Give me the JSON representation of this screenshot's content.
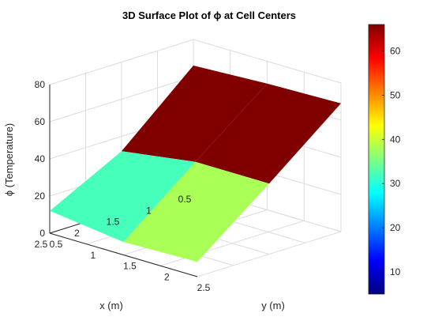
{
  "chart_data": {
    "type": "surface3d",
    "title": "3D Surface Plot of ϕ at Cell Centers",
    "xlabel": "x (m)",
    "ylabel": "y (m)",
    "zlabel": "ϕ (Temperature)",
    "x": [
      0.5,
      1.5,
      2.5
    ],
    "y": [
      0.5,
      1.5,
      2.5
    ],
    "z": [
      [
        66,
        68,
        69
      ],
      [
        32,
        38,
        38
      ],
      [
        12,
        7,
        8
      ]
    ],
    "xlim": [
      0.5,
      2.5
    ],
    "ylim": [
      0.5,
      2.5
    ],
    "zlim": [
      0,
      80
    ],
    "clim": [
      5,
      66
    ],
    "x_ticks": [
      "0.5",
      "1",
      "1.5",
      "2",
      "2.5"
    ],
    "y_ticks": [
      "0.5",
      "1",
      "1.5",
      "2",
      "2.5"
    ],
    "z_ticks": [
      "0",
      "20",
      "40",
      "60",
      "80"
    ],
    "colorbar_ticks": [
      "10",
      "20",
      "30",
      "40",
      "50",
      "60"
    ],
    "grid": true,
    "colormap": "jet"
  }
}
